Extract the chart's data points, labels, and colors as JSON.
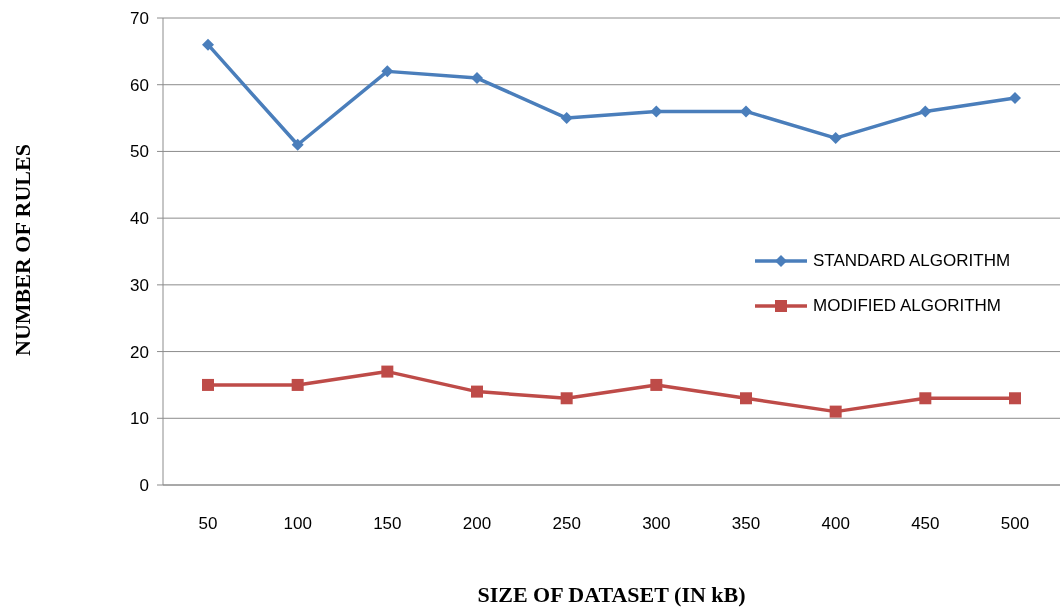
{
  "chart_data": {
    "type": "line",
    "xlabel": "SIZE OF DATASET (IN kB)",
    "ylabel": "NUMBER OF RULES",
    "categories": [
      "50",
      "100",
      "150",
      "200",
      "250",
      "300",
      "350",
      "400",
      "450",
      "500"
    ],
    "series": [
      {
        "name": "STANDARD ALGORITHM",
        "color": "#4a7ebb",
        "marker": "diamond",
        "values": [
          66,
          51,
          62,
          61,
          55,
          56,
          56,
          52,
          56,
          58
        ]
      },
      {
        "name": "MODIFIED ALGORITHM",
        "color": "#be4b48",
        "marker": "square",
        "values": [
          15,
          15,
          17,
          14,
          13,
          15,
          13,
          11,
          13,
          13
        ]
      }
    ],
    "ylim": [
      0,
      70
    ],
    "yticks": [
      0,
      10,
      20,
      30,
      40,
      50,
      60,
      70
    ],
    "grid": "y",
    "legend": "right",
    "line_style": "solid"
  }
}
